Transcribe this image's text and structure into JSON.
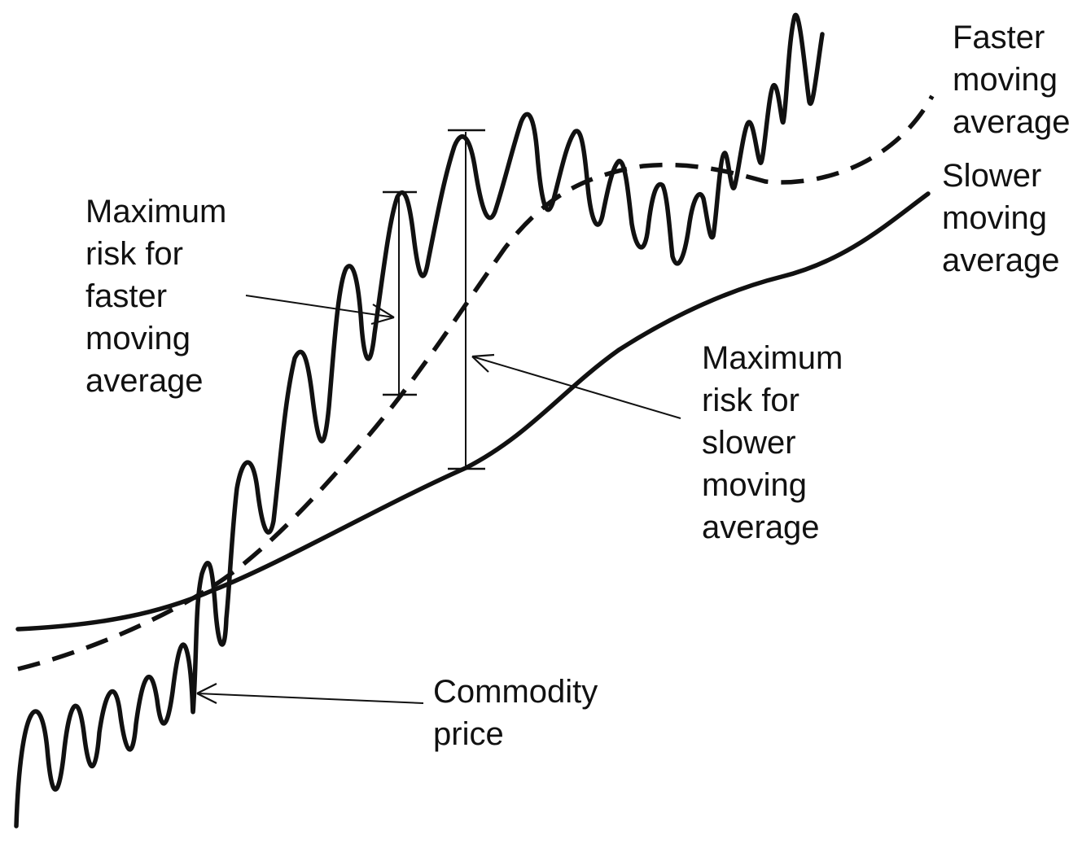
{
  "colors": {
    "ink": "#111111",
    "background": "#ffffff"
  },
  "labels": {
    "faster_ma": [
      "Faster",
      "moving",
      "average"
    ],
    "slower_ma": [
      "Slower",
      "moving",
      "average"
    ],
    "max_risk_faster": [
      "Maximum",
      "risk for",
      "faster",
      "moving",
      "average"
    ],
    "max_risk_slower": [
      "Maximum",
      "risk for",
      "slower",
      "moving",
      "average"
    ],
    "commodity_price": [
      "Commodity",
      "price"
    ]
  },
  "series": [
    {
      "key": "commodity_price",
      "style": "solid-oscillating"
    },
    {
      "key": "faster_ma",
      "style": "dashed"
    },
    {
      "key": "slower_ma",
      "style": "solid"
    }
  ],
  "annotations": [
    {
      "key": "max_risk_faster",
      "type": "vertical-range",
      "from_series": "faster_ma",
      "to_series": "commodity_price"
    },
    {
      "key": "max_risk_slower",
      "type": "vertical-range",
      "from_series": "slower_ma",
      "to_series": "commodity_price"
    }
  ]
}
